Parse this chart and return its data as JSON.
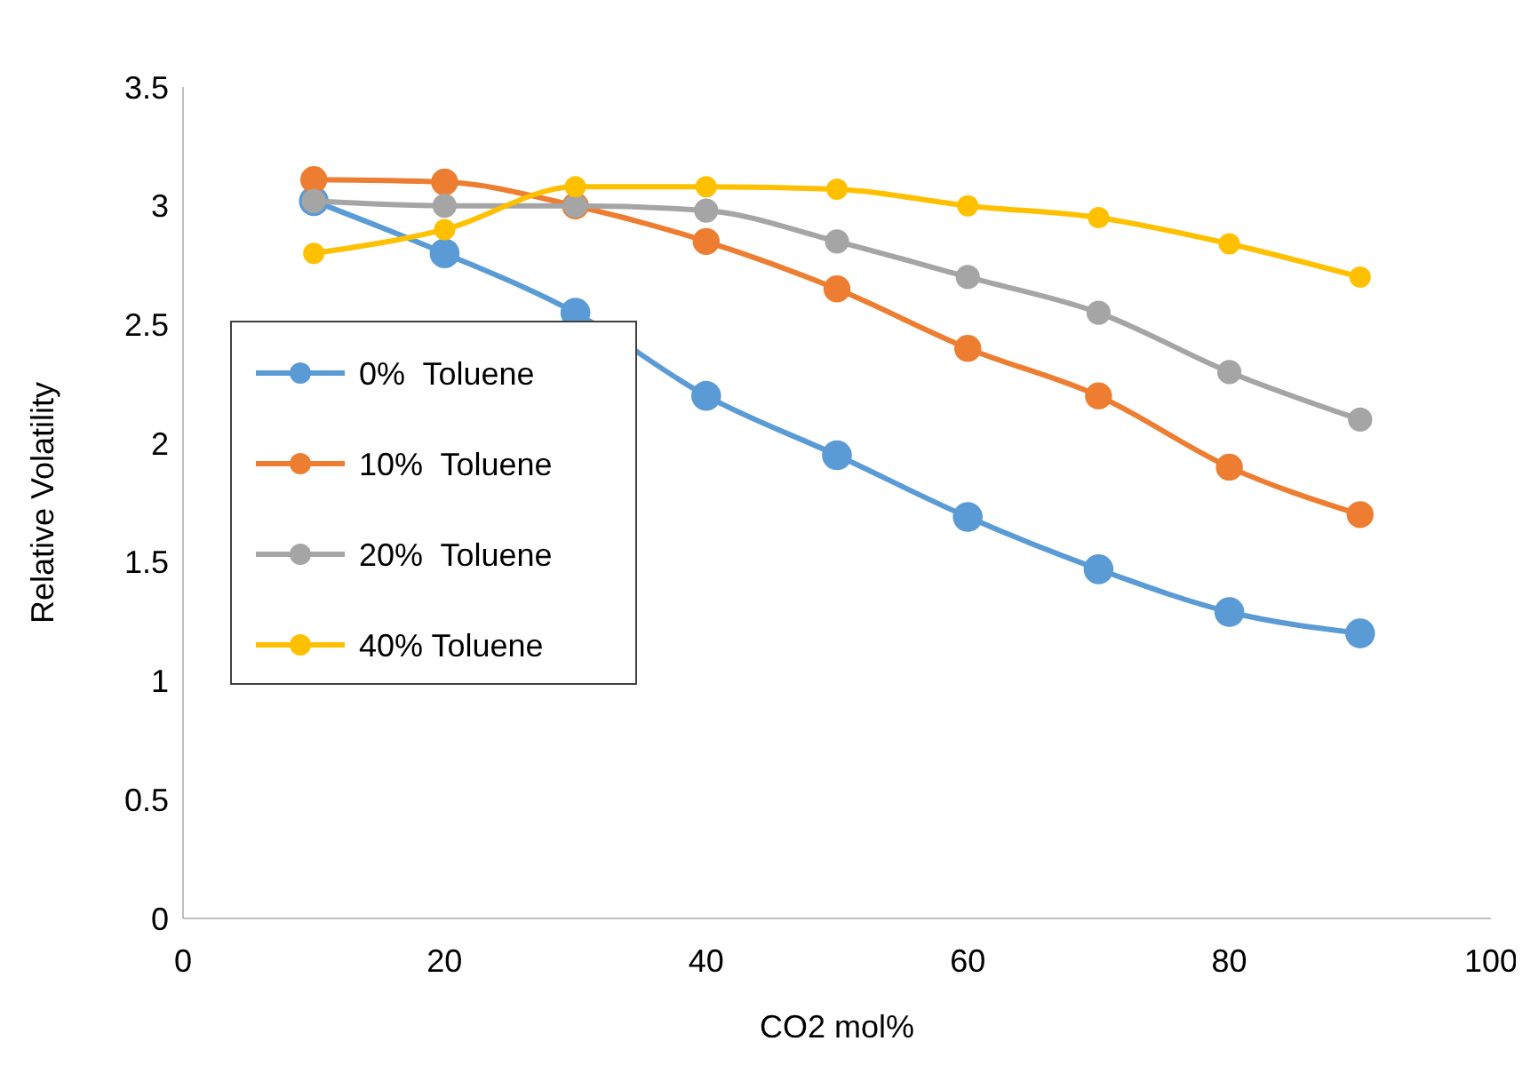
{
  "chart_data": {
    "type": "line",
    "xlabel": "CO2 mol%",
    "ylabel": "Relative Volatility",
    "x": [
      10,
      20,
      30,
      40,
      50,
      60,
      70,
      80,
      90
    ],
    "series": [
      {
        "name": "0%  Toluene",
        "color": "#5b9bd5",
        "values": [
          3.02,
          2.8,
          2.55,
          2.2,
          1.95,
          1.69,
          1.47,
          1.29,
          1.2
        ]
      },
      {
        "name": "10%  Toluene",
        "color": "#ed7d31",
        "values": [
          3.11,
          3.1,
          3.0,
          2.85,
          2.65,
          2.4,
          2.2,
          1.9,
          1.7
        ]
      },
      {
        "name": "20%  Toluene",
        "color": "#a5a5a5",
        "values": [
          3.02,
          3.0,
          3.0,
          2.98,
          2.85,
          2.7,
          2.55,
          2.3,
          2.1
        ]
      },
      {
        "name": "40% Toluene",
        "color": "#ffc000",
        "values": [
          2.8,
          2.9,
          3.08,
          3.08,
          3.07,
          3.0,
          2.95,
          2.84,
          2.7
        ]
      }
    ],
    "xlim": [
      0,
      100
    ],
    "xticks": [
      0,
      20,
      40,
      60,
      80,
      100
    ],
    "ylim": [
      0,
      3.5
    ],
    "yticks": [
      0,
      0.5,
      1,
      1.5,
      2,
      2.5,
      3,
      3.5
    ],
    "grid": false,
    "legend": "left",
    "marker": "circle",
    "line_style": "solid"
  }
}
